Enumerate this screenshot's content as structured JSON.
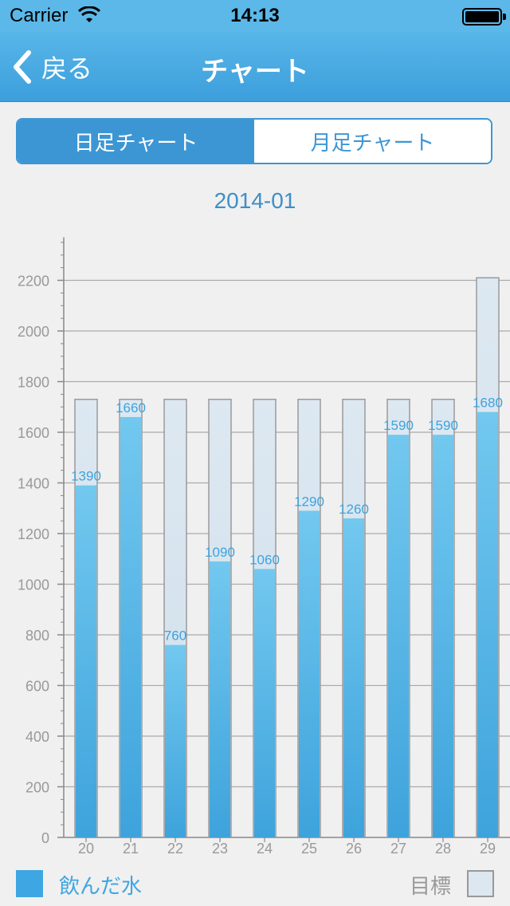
{
  "status_bar": {
    "carrier": "Carrier",
    "time": "14:13"
  },
  "nav": {
    "back_label": "戻る",
    "title": "チャート"
  },
  "segments": [
    {
      "label": "日足チャート",
      "active": true
    },
    {
      "label": "月足チャート",
      "active": false
    }
  ],
  "chart_data": {
    "type": "bar",
    "title": "2014-01",
    "categories": [
      "20",
      "21",
      "22",
      "23",
      "24",
      "25",
      "26",
      "27",
      "28",
      "29"
    ],
    "series": [
      {
        "name": "飲んだ水",
        "values": [
          1390,
          1660,
          760,
          1090,
          1060,
          1290,
          1260,
          1590,
          1590,
          1680
        ]
      },
      {
        "name": "目標",
        "values": [
          1730,
          1730,
          1730,
          1730,
          1730,
          1730,
          1730,
          1730,
          1730,
          2210
        ]
      }
    ],
    "yticks": [
      0,
      200,
      400,
      600,
      800,
      1000,
      1200,
      1400,
      1600,
      1800,
      2000,
      2200
    ],
    "ylim": [
      0,
      2370
    ],
    "grid": true,
    "legend_position": "bottom",
    "colors": {
      "water": "#3ea6e2",
      "goal": "#dce7f0"
    }
  },
  "legend": {
    "water_label": "飲んだ水",
    "goal_label": "目標"
  }
}
